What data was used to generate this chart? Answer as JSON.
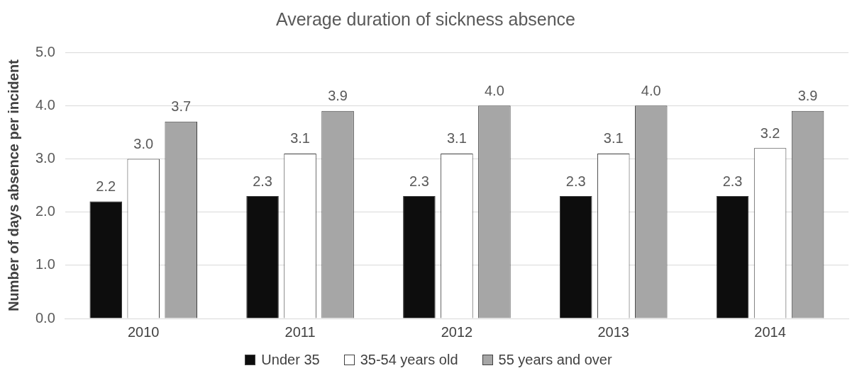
{
  "chart_data": {
    "type": "bar",
    "title": "Average duration of sickness absence",
    "ylabel": "Number of days absence per incident",
    "categories": [
      "2010",
      "2011",
      "2012",
      "2013",
      "2014"
    ],
    "series": [
      {
        "name": "Under 35",
        "color": "#0d0d0d",
        "values": [
          2.2,
          2.3,
          2.3,
          2.3,
          2.3
        ],
        "value_labels": [
          "2.2",
          "2.3",
          "2.3",
          "2.3",
          "2.3"
        ]
      },
      {
        "name": "35-54 years old",
        "color": "#ffffff",
        "values": [
          3.0,
          3.1,
          3.1,
          3.1,
          3.2
        ],
        "value_labels": [
          "3.0",
          "3.1",
          "3.1",
          "3.1",
          "3.2"
        ]
      },
      {
        "name": "55 years and over",
        "color": "#a6a6a6",
        "values": [
          3.7,
          3.9,
          4.0,
          4.0,
          3.9
        ],
        "value_labels": [
          "3.7",
          "3.9",
          "4.0",
          "4.0",
          "3.9"
        ]
      }
    ],
    "ylim": [
      0,
      5
    ],
    "yticks": [
      {
        "value": 0,
        "label": "0.0"
      },
      {
        "value": 1,
        "label": "1.0"
      },
      {
        "value": 2,
        "label": "2.0"
      },
      {
        "value": 3,
        "label": "3.0"
      },
      {
        "value": 4,
        "label": "4.0"
      },
      {
        "value": 5,
        "label": "5.0"
      }
    ],
    "grid": "y",
    "legend": "bottom"
  }
}
